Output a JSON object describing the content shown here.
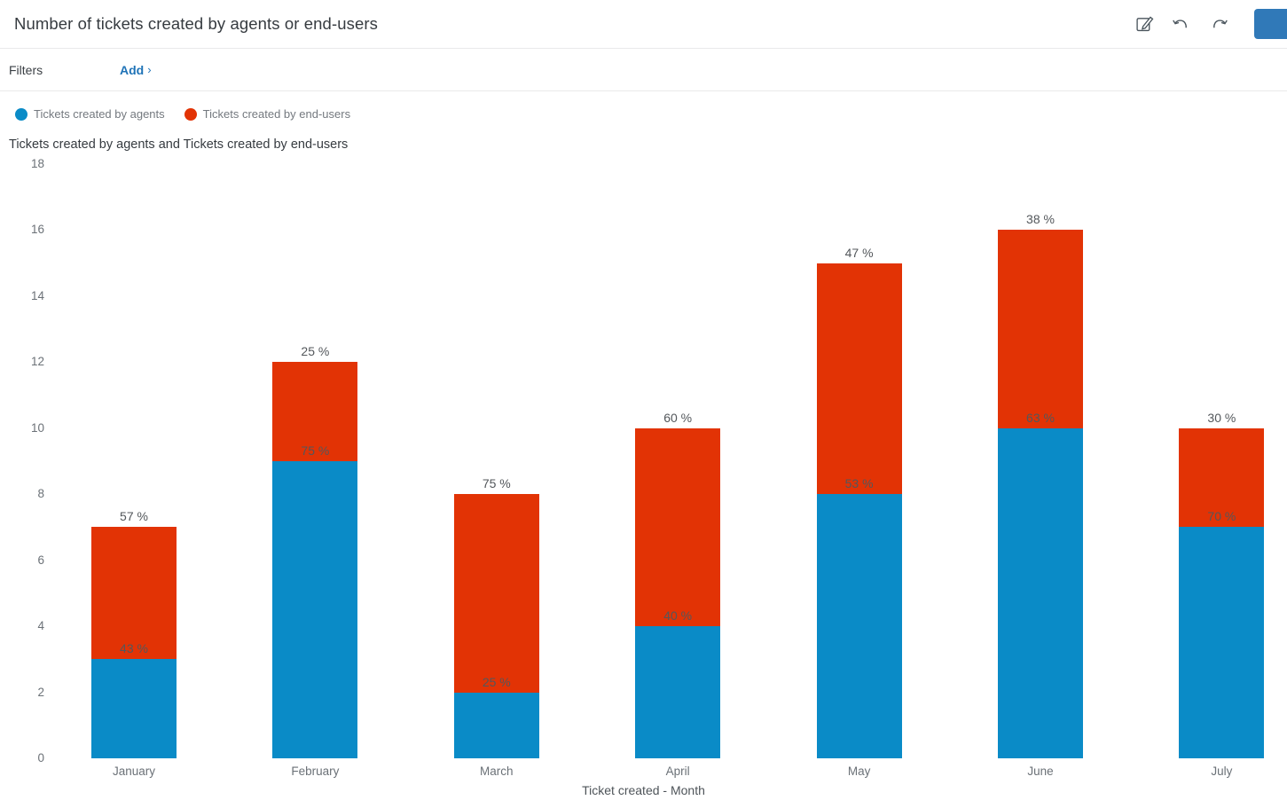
{
  "header": {
    "title": "Number of tickets created by agents or end-users"
  },
  "filters": {
    "label": "Filters",
    "add_label": "Add",
    "chevron": "›"
  },
  "colors": {
    "link_blue": "#1f73b7",
    "primary_button_blue": "#3079b8",
    "icon_gray": "#49545c",
    "bar_blue": "#0a8bc7",
    "bar_red": "#e23305"
  },
  "chart_data": {
    "type": "bar",
    "stacked": true,
    "title": "Tickets created by agents and Tickets created by end-users",
    "xlabel": "Ticket created - Month",
    "ylabel": "",
    "categories": [
      "January",
      "February",
      "March",
      "April",
      "May",
      "June",
      "July"
    ],
    "series": [
      {
        "name": "Tickets created by agents",
        "color": "#0a8bc7",
        "values": [
          3,
          9,
          2,
          4,
          8,
          10,
          7
        ],
        "pct_labels": [
          "43 %",
          "75 %",
          "25 %",
          "40 %",
          "53 %",
          "63 %",
          "70 %"
        ]
      },
      {
        "name": "Tickets created by end-users",
        "color": "#e23305",
        "values": [
          4,
          3,
          6,
          6,
          7,
          6,
          3
        ],
        "pct_labels": [
          "57 %",
          "25 %",
          "75 %",
          "60 %",
          "47 %",
          "38 %",
          "30 %"
        ]
      }
    ],
    "totals": [
      7,
      12,
      8,
      10,
      15,
      16,
      10
    ],
    "ylim": [
      0,
      18
    ],
    "yticks": [
      0,
      2,
      4,
      6,
      8,
      10,
      12,
      14,
      16,
      18
    ],
    "grid": false,
    "legend_position": "top-left"
  }
}
